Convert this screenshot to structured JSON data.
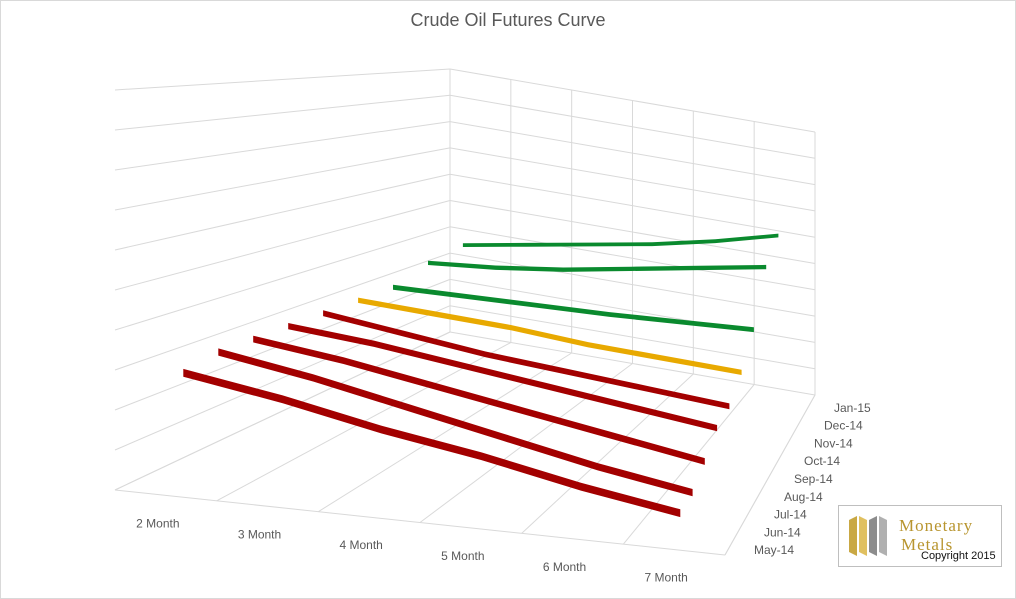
{
  "chart_data": {
    "type": "3d-line",
    "title": "Crude Oil Futures Curve",
    "categories": [
      "2 Month",
      "3 Month",
      "4 Month",
      "5 Month",
      "6 Month",
      "7 Month"
    ],
    "depth_labels": [
      "May-14",
      "Jun-14",
      "Jul-14",
      "Aug-14",
      "Sep-14",
      "Oct-14",
      "Nov-14",
      "Dec-14",
      "Jan-15"
    ],
    "grid": true,
    "legend": "none",
    "series": [
      {
        "depth": "May-14",
        "values": [
          0.3,
          0.26,
          0.21,
          0.17,
          0.12,
          0.08
        ],
        "color": "#a30000"
      },
      {
        "depth": "Jun-14",
        "values": [
          0.32,
          0.28,
          0.23,
          0.18,
          0.13,
          0.09
        ],
        "color": "#a30000"
      },
      {
        "depth": "Jul-14",
        "values": [
          0.32,
          0.29,
          0.25,
          0.21,
          0.17,
          0.13
        ],
        "color": "#a30000"
      },
      {
        "depth": "Aug-14",
        "values": [
          0.32,
          0.3,
          0.27,
          0.24,
          0.21,
          0.18
        ],
        "color": "#a30000"
      },
      {
        "depth": "Sep-14",
        "values": [
          0.32,
          0.29,
          0.26,
          0.24,
          0.22,
          0.2
        ],
        "color": "#a30000"
      },
      {
        "depth": "Oct-14",
        "values": [
          0.32,
          0.31,
          0.3,
          0.28,
          0.27,
          0.26
        ],
        "color": "#e8a900"
      },
      {
        "depth": "Nov-14",
        "values": [
          0.32,
          0.325,
          0.33,
          0.335,
          0.345,
          0.355
        ],
        "color": "#0a8a2e"
      },
      {
        "depth": "Dec-14",
        "values": [
          0.36,
          0.38,
          0.41,
          0.45,
          0.49,
          0.53
        ],
        "color": "#0a8a2e"
      },
      {
        "depth": "Jan-15",
        "values": [
          0.38,
          0.42,
          0.46,
          0.5,
          0.55,
          0.61
        ],
        "color": "#0a8a2e"
      }
    ]
  },
  "logo": {
    "line1": "Monetary",
    "line2": "Metals",
    "copyright": "Copyright 2015",
    "color": "#b8952f"
  }
}
